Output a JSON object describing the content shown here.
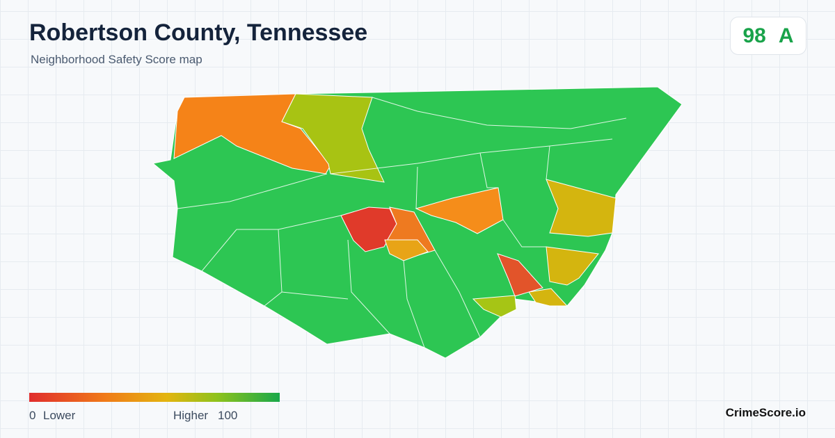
{
  "header": {
    "title": "Robertson County, Tennessee",
    "subtitle": "Neighborhood Safety Score map"
  },
  "score": {
    "value": 98,
    "grade": "A"
  },
  "legend": {
    "min": 0,
    "min_label": "Lower",
    "max_label": "Higher",
    "max": 100
  },
  "brand": "CrimeScore.io"
}
